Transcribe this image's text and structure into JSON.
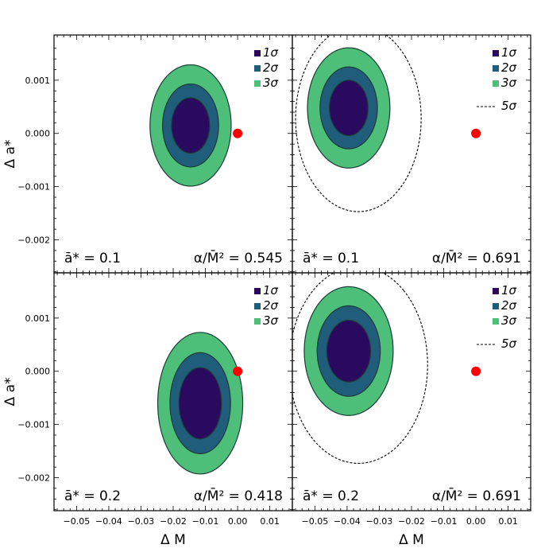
{
  "colors": {
    "sigma1": "#2a0a5e",
    "sigma2": "#1f5d7a",
    "sigma3": "#4dbf78",
    "contour_edge": "#1d3b3b",
    "marker": "#ff0000",
    "dashed": "#000000"
  },
  "chart_data": {
    "type": "contour",
    "xlabel": "Δ M",
    "ylabel": "Δ a*",
    "xlim": [
      -0.057,
      0.017
    ],
    "ylim": [
      -0.00262,
      0.00185
    ],
    "xticks": [
      -0.05,
      -0.04,
      -0.03,
      -0.02,
      -0.01,
      0.0,
      0.01
    ],
    "xtick_labels": [
      "−0.05",
      "−0.04",
      "−0.03",
      "−0.02",
      "−0.01",
      "0.00",
      "0.01"
    ],
    "yticks": [
      0.001,
      0.0,
      -0.001,
      -0.002
    ],
    "ytick_labels": [
      "0.001",
      "0.000",
      "−0.001",
      "−0.002"
    ],
    "legend": {
      "sigma1": "1σ",
      "sigma2": "2σ",
      "sigma3": "3σ",
      "dashed": "5σ"
    },
    "panels": [
      {
        "name": "top-left",
        "a_label": "ā* = 0.1",
        "alpha_label": "α/M̄² = 0.545",
        "reference_point": [
          0.0,
          0.0
        ],
        "center": [
          -0.0146,
          0.00015
        ],
        "contours": [
          {
            "level": "3σ",
            "semi_x": 0.0126,
            "semi_y": 0.00114,
            "tilt": -0.73
          },
          {
            "level": "2σ",
            "semi_x": 0.0087,
            "semi_y": 0.00078,
            "tilt": -0.73
          },
          {
            "level": "1σ",
            "semi_x": 0.0059,
            "semi_y": 0.00052,
            "tilt": -0.73
          }
        ],
        "show_5sigma": false
      },
      {
        "name": "top-right",
        "a_label": "ā* = 0.1",
        "alpha_label": "α/M̄² = 0.691",
        "reference_point": [
          0.0,
          0.0
        ],
        "center": [
          -0.0395,
          0.00048
        ],
        "contours": [
          {
            "level": "5σ",
            "semi_x": 0.0195,
            "semi_y": 0.00175,
            "tilt": -0.73,
            "center": [
              -0.0365,
              0.00028
            ]
          },
          {
            "level": "3σ",
            "semi_x": 0.0128,
            "semi_y": 0.00113,
            "tilt": -0.73
          },
          {
            "level": "2σ",
            "semi_x": 0.0089,
            "semi_y": 0.00077,
            "tilt": -0.73
          },
          {
            "level": "1σ",
            "semi_x": 0.006,
            "semi_y": 0.00052,
            "tilt": -0.73
          }
        ],
        "show_5sigma": true
      },
      {
        "name": "bottom-left",
        "a_label": "ā* = 0.2",
        "alpha_label": "α/M̄² = 0.418",
        "reference_point": [
          0.0,
          0.0
        ],
        "center": [
          -0.0116,
          -0.0006
        ],
        "contours": [
          {
            "level": "3σ",
            "semi_x": 0.0132,
            "semi_y": 0.00133,
            "tilt": -0.86
          },
          {
            "level": "2σ",
            "semi_x": 0.0094,
            "semi_y": 0.00095,
            "tilt": -0.86
          },
          {
            "level": "1σ",
            "semi_x": 0.0066,
            "semi_y": 0.00067,
            "tilt": -0.86
          }
        ],
        "show_5sigma": false
      },
      {
        "name": "bottom-right",
        "a_label": "ā* = 0.2",
        "alpha_label": "α/M̄² = 0.691",
        "reference_point": [
          0.0,
          0.0
        ],
        "center": [
          -0.0395,
          0.00038
        ],
        "contours": [
          {
            "level": "5σ",
            "semi_x": 0.0215,
            "semi_y": 0.00185,
            "tilt": -0.86,
            "center": [
              -0.0365,
              0.00012
            ]
          },
          {
            "level": "3σ",
            "semi_x": 0.0138,
            "semi_y": 0.00121,
            "tilt": -0.86
          },
          {
            "level": "2σ",
            "semi_x": 0.0098,
            "semi_y": 0.00085,
            "tilt": -0.86
          },
          {
            "level": "1σ",
            "semi_x": 0.0068,
            "semi_y": 0.00058,
            "tilt": -0.86
          }
        ],
        "show_5sigma": true
      }
    ]
  }
}
